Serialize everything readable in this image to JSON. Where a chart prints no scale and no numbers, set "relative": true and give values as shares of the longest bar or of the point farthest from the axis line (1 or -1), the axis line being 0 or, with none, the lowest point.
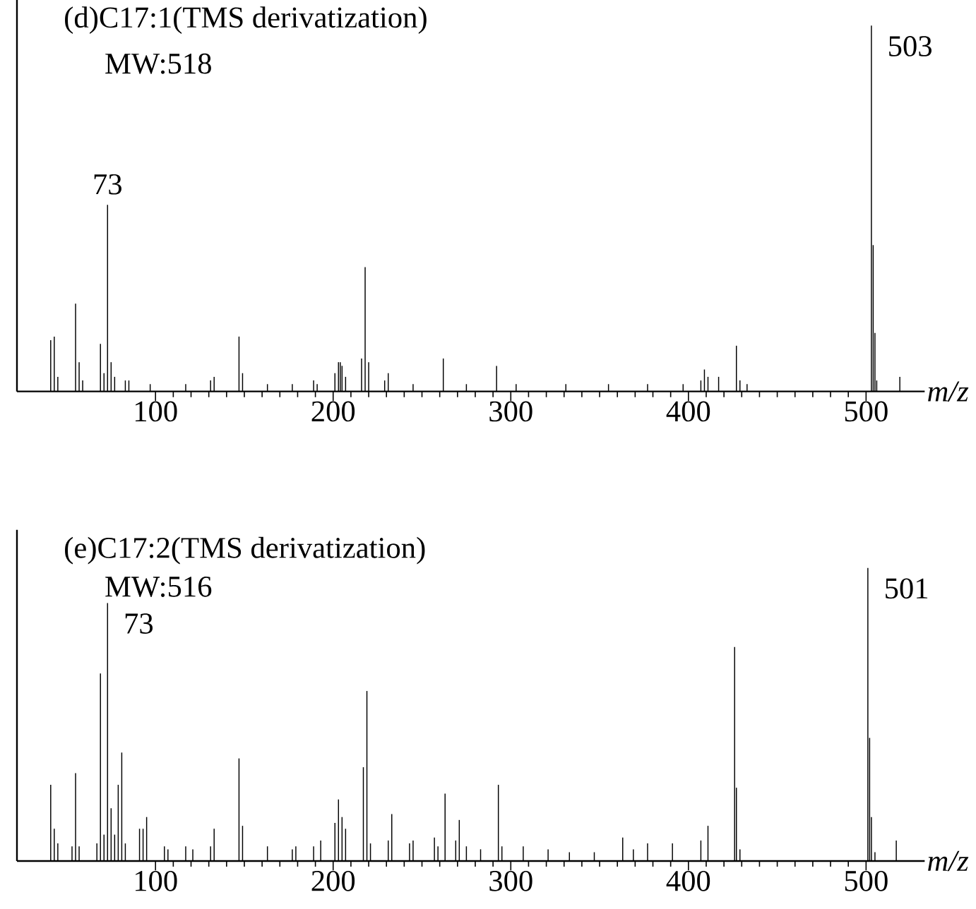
{
  "chart_data": [
    {
      "type": "bar",
      "title": "(d)C17:1(TMS derivatization)",
      "xlabel": "m/z",
      "relative": true,
      "tick_labels": "x",
      "color": "#000000",
      "xlim": [
        22,
        533
      ],
      "xticks": [
        {
          "value": 100,
          "label": "100"
        },
        {
          "value": 200,
          "label": "200"
        },
        {
          "value": 300,
          "label": "300"
        },
        {
          "value": 400,
          "label": "400"
        },
        {
          "value": 500,
          "label": "500"
        }
      ],
      "x": [
        41,
        43,
        45,
        55,
        57,
        59,
        69,
        71,
        73,
        75,
        77,
        83,
        85,
        97,
        117,
        131,
        133,
        147,
        149,
        163,
        177,
        189,
        191,
        201,
        203,
        204,
        205,
        207,
        216,
        218,
        220,
        229,
        231,
        245,
        262,
        275,
        292,
        303,
        331,
        355,
        377,
        397,
        407,
        409,
        411,
        417,
        427,
        429,
        433,
        503,
        504,
        505,
        506,
        519
      ],
      "values": [
        0.14,
        0.15,
        0.04,
        0.24,
        0.08,
        0.03,
        0.13,
        0.05,
        0.51,
        0.08,
        0.04,
        0.03,
        0.03,
        0.02,
        0.02,
        0.03,
        0.04,
        0.15,
        0.05,
        0.02,
        0.02,
        0.03,
        0.02,
        0.05,
        0.08,
        0.08,
        0.07,
        0.04,
        0.09,
        0.34,
        0.08,
        0.03,
        0.05,
        0.02,
        0.09,
        0.02,
        0.07,
        0.02,
        0.02,
        0.02,
        0.02,
        0.02,
        0.03,
        0.06,
        0.04,
        0.04,
        0.125,
        0.03,
        0.02,
        1.0,
        0.4,
        0.16,
        0.03,
        0.04
      ],
      "annotations": [
        "MW:518",
        {
          "text": "73",
          "x": 73,
          "y": 0.51
        },
        {
          "text": "503",
          "x": 503,
          "y": 1.0
        }
      ]
    },
    {
      "type": "bar",
      "title": "(e)C17:2(TMS derivatization)",
      "xlabel": "m/z",
      "relative": true,
      "tick_labels": "x",
      "color": "#000000",
      "xlim": [
        22,
        533
      ],
      "xticks": [
        {
          "value": 100,
          "label": "100"
        },
        {
          "value": 200,
          "label": "200"
        },
        {
          "value": 300,
          "label": "300"
        },
        {
          "value": 400,
          "label": "400"
        },
        {
          "value": 500,
          "label": "500"
        }
      ],
      "x": [
        41,
        43,
        45,
        53,
        55,
        57,
        67,
        69,
        71,
        73,
        75,
        77,
        79,
        81,
        83,
        91,
        93,
        95,
        105,
        107,
        117,
        121,
        131,
        133,
        147,
        149,
        163,
        177,
        179,
        189,
        193,
        201,
        203,
        205,
        207,
        217,
        219,
        221,
        231,
        233,
        243,
        245,
        257,
        259,
        263,
        269,
        271,
        275,
        283,
        293,
        295,
        307,
        321,
        333,
        347,
        363,
        369,
        377,
        391,
        407,
        411,
        426,
        427,
        429,
        501,
        502,
        503,
        505,
        517
      ],
      "values": [
        0.26,
        0.11,
        0.06,
        0.05,
        0.3,
        0.05,
        0.06,
        0.64,
        0.09,
        0.88,
        0.18,
        0.09,
        0.26,
        0.37,
        0.06,
        0.11,
        0.11,
        0.15,
        0.05,
        0.04,
        0.05,
        0.04,
        0.05,
        0.11,
        0.35,
        0.12,
        0.05,
        0.04,
        0.05,
        0.05,
        0.07,
        0.13,
        0.21,
        0.15,
        0.11,
        0.32,
        0.58,
        0.06,
        0.07,
        0.16,
        0.06,
        0.07,
        0.08,
        0.05,
        0.23,
        0.07,
        0.14,
        0.05,
        0.04,
        0.26,
        0.05,
        0.05,
        0.04,
        0.03,
        0.03,
        0.08,
        0.04,
        0.06,
        0.06,
        0.07,
        0.12,
        0.73,
        0.25,
        0.04,
        1.0,
        0.42,
        0.15,
        0.03,
        0.07
      ],
      "annotations": [
        "MW:516",
        {
          "text": "73",
          "x": 73,
          "y": 0.88
        },
        {
          "text": "501",
          "x": 501,
          "y": 1.0
        }
      ]
    }
  ]
}
